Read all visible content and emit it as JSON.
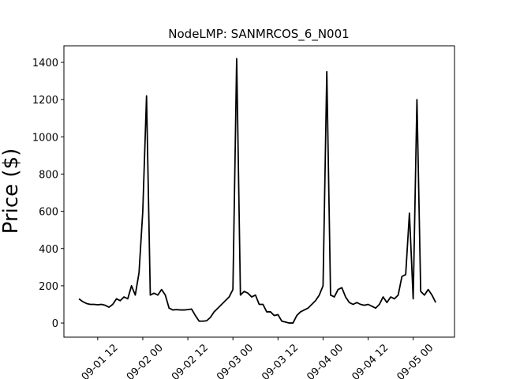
{
  "chart_data": {
    "type": "line",
    "title": "NodeLMP: SANMRCOS_6_N001",
    "ylabel": "Price ($)",
    "x": [
      "09-01 07",
      "09-01 08",
      "09-01 09",
      "09-01 10",
      "09-01 11",
      "09-01 12",
      "09-01 13",
      "09-01 14",
      "09-01 15",
      "09-01 16",
      "09-01 17",
      "09-01 18",
      "09-01 19",
      "09-01 20",
      "09-01 21",
      "09-01 22",
      "09-01 23",
      "09-02 00",
      "09-02 01",
      "09-02 02",
      "09-02 03",
      "09-02 04",
      "09-02 05",
      "09-02 06",
      "09-02 07",
      "09-02 08",
      "09-02 09",
      "09-02 10",
      "09-02 11",
      "09-02 12",
      "09-02 13",
      "09-02 14",
      "09-02 15",
      "09-02 16",
      "09-02 17",
      "09-02 18",
      "09-02 19",
      "09-02 20",
      "09-02 21",
      "09-02 22",
      "09-02 23",
      "09-03 00",
      "09-03 01",
      "09-03 02",
      "09-03 03",
      "09-03 04",
      "09-03 05",
      "09-03 06",
      "09-03 07",
      "09-03 08",
      "09-03 09",
      "09-03 10",
      "09-03 11",
      "09-03 12",
      "09-03 13",
      "09-03 14",
      "09-03 15",
      "09-03 16",
      "09-03 17",
      "09-03 18",
      "09-03 19",
      "09-03 20",
      "09-03 21",
      "09-03 22",
      "09-03 23",
      "09-04 00",
      "09-04 01",
      "09-04 02",
      "09-04 03",
      "09-04 04",
      "09-04 05",
      "09-04 06",
      "09-04 07",
      "09-04 08",
      "09-04 09",
      "09-04 10",
      "09-04 11",
      "09-04 12",
      "09-04 13",
      "09-04 14",
      "09-04 15",
      "09-04 16",
      "09-04 17",
      "09-04 18",
      "09-04 19",
      "09-04 20",
      "09-04 21",
      "09-04 22",
      "09-04 23",
      "09-05 00",
      "09-05 01",
      "09-05 02",
      "09-05 03",
      "09-05 04",
      "09-05 05",
      "09-05 06"
    ],
    "series": [
      {
        "name": "SANMRCOS_6_N001",
        "color": "#000000",
        "values": [
          130,
          115,
          105,
          100,
          100,
          98,
          100,
          95,
          85,
          100,
          130,
          120,
          140,
          130,
          200,
          150,
          270,
          600,
          1220,
          150,
          160,
          150,
          180,
          150,
          80,
          70,
          72,
          70,
          70,
          72,
          75,
          40,
          10,
          10,
          12,
          30,
          60,
          80,
          100,
          120,
          140,
          180,
          1420,
          150,
          170,
          160,
          140,
          150,
          100,
          100,
          60,
          60,
          40,
          45,
          10,
          5,
          0,
          0,
          40,
          60,
          70,
          80,
          100,
          120,
          150,
          200,
          1350,
          150,
          140,
          180,
          190,
          140,
          110,
          100,
          110,
          100,
          95,
          100,
          90,
          80,
          100,
          140,
          110,
          140,
          130,
          150,
          250,
          260,
          590,
          130,
          1200,
          170,
          150,
          180,
          150,
          110
        ]
      }
    ],
    "xlim": [
      "09-01 03",
      "09-05 11"
    ],
    "xticks": [
      "09-01 12",
      "09-02 00",
      "09-02 12",
      "09-03 00",
      "09-03 12",
      "09-04 00",
      "09-04 12",
      "09-05 00"
    ],
    "ylim": [
      -76,
      1489
    ],
    "yticks": [
      0,
      200,
      400,
      600,
      800,
      1000,
      1200,
      1400
    ]
  }
}
